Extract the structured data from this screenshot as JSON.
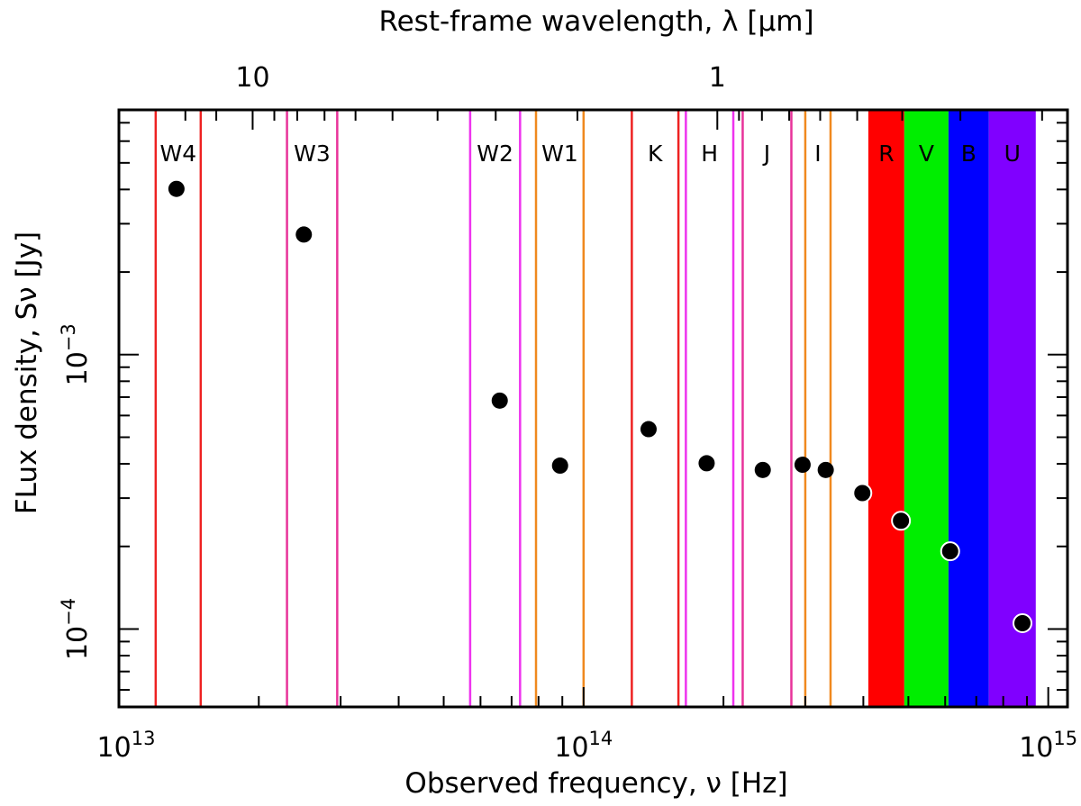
{
  "chart_data": {
    "type": "scatter",
    "x_axis": {
      "label": "Observed frequency, ν [Hz]",
      "scale": "log",
      "range": [
        10000000000000.0,
        1100000000000000.0
      ],
      "major_ticks": [
        {
          "value": 10000000000000.0,
          "base": "10",
          "exp": "13"
        },
        {
          "value": 100000000000000.0,
          "base": "10",
          "exp": "14"
        },
        {
          "value": 1000000000000000.0,
          "base": "10",
          "exp": "15"
        }
      ]
    },
    "x2_axis": {
      "label": "Rest-frame wavelength, λ [μm]",
      "scale": "log",
      "major_ticks": [
        {
          "value": 10,
          "label": "10",
          "freq": 19400000000000.0
        },
        {
          "value": 1,
          "label": "1",
          "freq": 194000000000000.0
        }
      ],
      "minor_freqs": [
        13900000000000.0,
        16200000000000.0,
        21600000000000.0,
        24200000000000.0,
        27700000000000.0,
        32300000000000.0,
        38800000000000.0,
        48500000000000.0,
        64700000000000.0,
        97000000000000.0,
        216000000000000.0,
        242000000000000.0,
        277000000000000.0,
        323000000000000.0,
        388000000000000.0,
        485000000000000.0,
        647000000000000.0,
        970000000000000.0
      ]
    },
    "y_axis": {
      "label": "FLux density, Sν [Jy]",
      "scale": "log",
      "range": [
        5.2e-05,
        0.0078
      ],
      "major_ticks": [
        {
          "value": 0.0001,
          "base": "10",
          "exp": "−4"
        },
        {
          "value": 0.001,
          "base": "10",
          "exp": "−3"
        }
      ]
    },
    "filter_bands": [
      {
        "name": "W4",
        "lo": 12000000000000.0,
        "hi": 15000000000000.0,
        "style": "lines",
        "color": "#ee2222"
      },
      {
        "name": "W3",
        "lo": 23000000000000.0,
        "hi": 29500000000000.0,
        "style": "lines",
        "color": "#e8339a"
      },
      {
        "name": "W2",
        "lo": 57000000000000.0,
        "hi": 73000000000000.0,
        "style": "lines",
        "color": "#ee33ee"
      },
      {
        "name": "W1",
        "lo": 79000000000000.0,
        "hi": 100000000000000.0,
        "style": "lines",
        "color": "#f0891e"
      },
      {
        "name": "K",
        "lo": 127000000000000.0,
        "hi": 160000000000000.0,
        "style": "lines",
        "color": "#ee2222"
      },
      {
        "name": "H",
        "lo": 166000000000000.0,
        "hi": 210000000000000.0,
        "style": "lines",
        "color": "#ee33ee"
      },
      {
        "name": "J",
        "lo": 220000000000000.0,
        "hi": 280000000000000.0,
        "style": "lines",
        "color": "#e8339a"
      },
      {
        "name": "I",
        "lo": 300000000000000.0,
        "hi": 340000000000000.0,
        "style": "lines",
        "color": "#f0891e"
      },
      {
        "name": "R",
        "lo": 410000000000000.0,
        "hi": 490000000000000.0,
        "style": "fill",
        "color": "#ff0000"
      },
      {
        "name": "V",
        "lo": 490000000000000.0,
        "hi": 610000000000000.0,
        "style": "fill",
        "color": "#00ee00"
      },
      {
        "name": "B",
        "lo": 610000000000000.0,
        "hi": 745000000000000.0,
        "style": "fill",
        "color": "#0000ff"
      },
      {
        "name": "U",
        "lo": 745000000000000.0,
        "hi": 940000000000000.0,
        "style": "fill",
        "color": "#8000ff"
      }
    ],
    "points": [
      {
        "x": 13300000000000.0,
        "y": 0.00402,
        "outline": false
      },
      {
        "x": 25000000000000.0,
        "y": 0.00274,
        "outline": false
      },
      {
        "x": 66000000000000.0,
        "y": 0.00068,
        "outline": false
      },
      {
        "x": 89000000000000.0,
        "y": 0.000394,
        "outline": false
      },
      {
        "x": 138000000000000.0,
        "y": 0.000535,
        "outline": false
      },
      {
        "x": 184000000000000.0,
        "y": 0.000402,
        "outline": false
      },
      {
        "x": 243000000000000.0,
        "y": 0.00038,
        "outline": false
      },
      {
        "x": 296000000000000.0,
        "y": 0.000397,
        "outline": false
      },
      {
        "x": 332000000000000.0,
        "y": 0.00038,
        "outline": false
      },
      {
        "x": 398000000000000.0,
        "y": 0.000313,
        "outline": true
      },
      {
        "x": 482000000000000.0,
        "y": 0.000248,
        "outline": true
      },
      {
        "x": 615000000000000.0,
        "y": 0.000192,
        "outline": true
      },
      {
        "x": 880000000000000.0,
        "y": 0.000105,
        "outline": true
      }
    ],
    "grid": false,
    "legend": "none"
  }
}
